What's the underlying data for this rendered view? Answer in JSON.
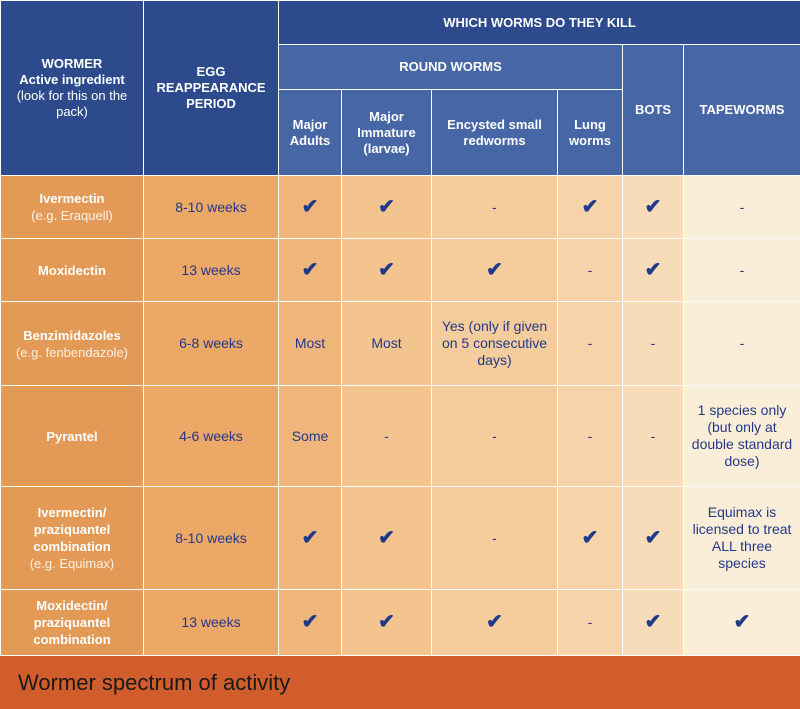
{
  "header": {
    "wormer_title": "WORMER",
    "wormer_sub1": "Active ingredient",
    "wormer_sub2": "(look for this on the pack)",
    "egg_title": "EGG REAPPEARANCE PERIOD",
    "which_worms": "WHICH WORMS DO THEY KILL",
    "round_worms": "ROUND WORMS",
    "major_adults": "Major Adults",
    "major_immature": "Major Immature (larvae)",
    "encysted": "Encysted small redworms",
    "lung": "Lung worms",
    "bots": "BOTS",
    "tapeworms": "TAPEWORMS"
  },
  "rows": [
    {
      "name": "Ivermectin",
      "example": "(e.g. Eraquell)",
      "period": "8-10 weeks",
      "adults": "✔",
      "immature": "✔",
      "encysted": "-",
      "lung": "✔",
      "bots": "✔",
      "tape": "-"
    },
    {
      "name": "Moxidectin",
      "example": "",
      "period": "13 weeks",
      "adults": "✔",
      "immature": "✔",
      "encysted": "✔",
      "lung": "-",
      "bots": "✔",
      "tape": "-"
    },
    {
      "name": "Benzimidazoles",
      "example": "(e.g. fenbendazole)",
      "period": "6-8 weeks",
      "adults": "Most",
      "immature": "Most",
      "encysted": "Yes (only if given on 5 consecutive days)",
      "lung": "-",
      "bots": "-",
      "tape": "-"
    },
    {
      "name": "Pyrantel",
      "example": "",
      "period": "4-6 weeks",
      "adults": "Some",
      "immature": "-",
      "encysted": "-",
      "lung": "-",
      "bots": "-",
      "tape": "1 species only (but only at double standard dose)"
    },
    {
      "name": "Ivermectin/ praziquantel combination",
      "example": "(e.g. Equimax)",
      "period": "8-10 weeks",
      "adults": "✔",
      "immature": "✔",
      "encysted": "-",
      "lung": "✔",
      "bots": "✔",
      "tape": "Equimax is licensed to treat ALL three species"
    },
    {
      "name": "Moxidectin/ praziquantel combination",
      "example": "",
      "period": "13 weeks",
      "adults": "✔",
      "immature": "✔",
      "encysted": "✔",
      "lung": "-",
      "bots": "✔",
      "tape": "✔"
    }
  ],
  "footer": {
    "title": "Wormer spectrum of activity"
  }
}
